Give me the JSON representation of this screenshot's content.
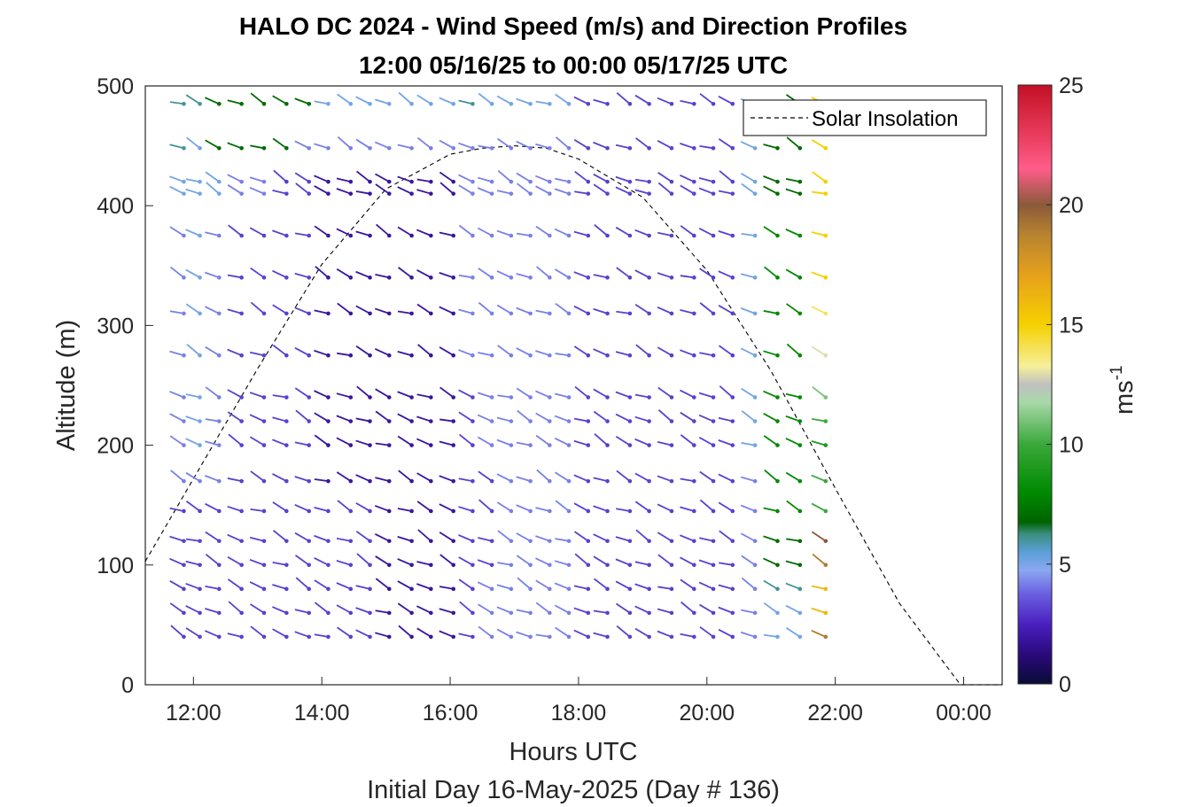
{
  "chart_data": {
    "type": "wind-barb-profile",
    "title": "HALO DC 2024 - Wind Speed (m/s) and Direction Profiles",
    "subtitle": "12:00 05/16/25 to 00:00 05/17/25  UTC",
    "xlabel": "Hours UTC",
    "xlabel2": "Initial Day 16-May-2025 (Day # 136)",
    "ylabel": "Altitude (m)",
    "xlim": [
      11.25,
      24.6
    ],
    "ylim": [
      0,
      500
    ],
    "x_tick_values": [
      12,
      14,
      16,
      18,
      20,
      22,
      24
    ],
    "x_tick_labels": [
      "12:00",
      "14:00",
      "16:00",
      "18:00",
      "20:00",
      "22:00",
      "00:00"
    ],
    "y_ticks": [
      0,
      100,
      200,
      300,
      400,
      500
    ],
    "colorbar": {
      "label": "ms",
      "label_exponent": "-1",
      "range": [
        0,
        25
      ],
      "ticks": [
        0,
        5,
        10,
        15,
        20,
        25
      ]
    },
    "legend": {
      "entry": "Solar Insolation",
      "placement": "top-right"
    },
    "grid": false,
    "series": {
      "solar_insolation": {
        "x": [
          11.25,
          12.0,
          13.0,
          14.0,
          15.0,
          16.0,
          16.5,
          17.0,
          17.5,
          18.0,
          19.0,
          20.0,
          21.0,
          22.0,
          23.0,
          23.95,
          24.6
        ],
        "y": [
          103,
          172,
          264,
          351,
          414,
          443,
          448,
          450,
          448,
          439,
          407,
          346,
          262,
          164,
          68,
          0,
          0
        ]
      },
      "wind_profiles": {
        "times": [
          11.85,
          12.1,
          12.4,
          12.75,
          13.1,
          13.45,
          13.8,
          14.1,
          14.45,
          14.75,
          15.05,
          15.4,
          15.7,
          16.05,
          16.35,
          16.65,
          16.95,
          17.25,
          17.55,
          17.85,
          18.15,
          18.45,
          18.8,
          19.1,
          19.45,
          19.8,
          20.1,
          20.4,
          20.75,
          21.1,
          21.45,
          21.85
        ],
        "altitudes": [
          40,
          60,
          80,
          100,
          120,
          145,
          170,
          200,
          220,
          240,
          275,
          310,
          340,
          375,
          410,
          420,
          448,
          485
        ],
        "speed_ms": [
          [
            3,
            3,
            3,
            3,
            3,
            3,
            3,
            3,
            3,
            3,
            2,
            2,
            2,
            2,
            3,
            4,
            4,
            4,
            4,
            4,
            3,
            3,
            3,
            3,
            3,
            3,
            3,
            3,
            4,
            5,
            5,
            19
          ],
          [
            3,
            3,
            3,
            3,
            3,
            3,
            3,
            3,
            3,
            3,
            2,
            2,
            2,
            2,
            3,
            4,
            4,
            4,
            4,
            4,
            3,
            3,
            3,
            3,
            3,
            3,
            3,
            3,
            4,
            5,
            5,
            16
          ],
          [
            3,
            3,
            3,
            3,
            3,
            3,
            3,
            3,
            3,
            3,
            2,
            2,
            2,
            2,
            3,
            4,
            4,
            4,
            4,
            4,
            3,
            3,
            3,
            3,
            3,
            3,
            3,
            3,
            4,
            6,
            6,
            16
          ],
          [
            3,
            3,
            3,
            3,
            3,
            3,
            3,
            3,
            3,
            3,
            2,
            2,
            2,
            2,
            3,
            3,
            4,
            4,
            4,
            4,
            3,
            3,
            3,
            3,
            3,
            3,
            3,
            3,
            4,
            7,
            7,
            19
          ],
          [
            3,
            3,
            3,
            3,
            3,
            3,
            3,
            3,
            3,
            3,
            2,
            2,
            2,
            2,
            3,
            3,
            4,
            4,
            4,
            4,
            3,
            3,
            3,
            3,
            3,
            3,
            3,
            3,
            4,
            7,
            7,
            20
          ],
          [
            3,
            3,
            3,
            3,
            3,
            3,
            3,
            3,
            3,
            3,
            2,
            2,
            2,
            2,
            3,
            3,
            4,
            4,
            4,
            4,
            3,
            3,
            3,
            3,
            3,
            3,
            3,
            3,
            4,
            8,
            8,
            10
          ],
          [
            4,
            4,
            4,
            3,
            3,
            3,
            3,
            2,
            2,
            2,
            2,
            2,
            2,
            2,
            3,
            3,
            4,
            4,
            4,
            4,
            3,
            3,
            3,
            3,
            3,
            3,
            3,
            3,
            4,
            8,
            8,
            10
          ],
          [
            4,
            5,
            4,
            3,
            3,
            3,
            3,
            2,
            2,
            2,
            2,
            2,
            2,
            2,
            3,
            4,
            4,
            4,
            4,
            4,
            3,
            3,
            3,
            3,
            3,
            3,
            3,
            3,
            5,
            8,
            8,
            9
          ],
          [
            4,
            5,
            4,
            3,
            3,
            3,
            3,
            2,
            2,
            2,
            2,
            2,
            2,
            2,
            3,
            4,
            4,
            4,
            4,
            4,
            3,
            3,
            3,
            3,
            3,
            3,
            3,
            3,
            5,
            8,
            8,
            10
          ],
          [
            4,
            5,
            4,
            3,
            3,
            3,
            3,
            2,
            2,
            2,
            2,
            2,
            2,
            2,
            3,
            4,
            4,
            4,
            4,
            4,
            3,
            3,
            3,
            3,
            3,
            3,
            3,
            3,
            5,
            8,
            8,
            11
          ],
          [
            4,
            5,
            4,
            3,
            3,
            3,
            3,
            2,
            2,
            2,
            2,
            2,
            2,
            2,
            4,
            4,
            4,
            4,
            4,
            4,
            3,
            3,
            3,
            3,
            3,
            3,
            3,
            3,
            5,
            8,
            8,
            13
          ],
          [
            4,
            5,
            4,
            3,
            3,
            3,
            3,
            2,
            2,
            2,
            2,
            2,
            2,
            2,
            4,
            4,
            4,
            4,
            4,
            4,
            3,
            3,
            3,
            3,
            3,
            3,
            3,
            3,
            5,
            8,
            8,
            14
          ],
          [
            4,
            5,
            4,
            3,
            3,
            3,
            3,
            2,
            2,
            2,
            2,
            2,
            2,
            2,
            4,
            4,
            4,
            4,
            4,
            4,
            3,
            3,
            3,
            3,
            3,
            3,
            3,
            3,
            5,
            8,
            8,
            15
          ],
          [
            4,
            5,
            4,
            3,
            3,
            3,
            3,
            2,
            2,
            2,
            2,
            2,
            2,
            2,
            4,
            4,
            4,
            4,
            4,
            4,
            3,
            3,
            3,
            3,
            3,
            3,
            3,
            3,
            5,
            8,
            8,
            15
          ],
          [
            5,
            5,
            5,
            4,
            4,
            3,
            3,
            2,
            2,
            2,
            2,
            2,
            2,
            2,
            4,
            4,
            4,
            4,
            4,
            4,
            3,
            3,
            3,
            3,
            3,
            3,
            3,
            3,
            5,
            7,
            7,
            15
          ],
          [
            5,
            5,
            5,
            4,
            4,
            3,
            3,
            2,
            2,
            2,
            2,
            2,
            2,
            2,
            4,
            4,
            4,
            4,
            4,
            4,
            3,
            3,
            3,
            3,
            3,
            3,
            3,
            3,
            5,
            7,
            7,
            15
          ],
          [
            6,
            5,
            7,
            7,
            7,
            7,
            4,
            4,
            4,
            4,
            4,
            4,
            4,
            4,
            4,
            4,
            4,
            4,
            4,
            4,
            3,
            3,
            3,
            3,
            3,
            3,
            3,
            3,
            5,
            7,
            7,
            15
          ],
          [
            6,
            6,
            7,
            7,
            7,
            7,
            7,
            5,
            5,
            5,
            5,
            5,
            5,
            5,
            6,
            5,
            5,
            5,
            5,
            5,
            3,
            3,
            3,
            3,
            3,
            3,
            3,
            3,
            5,
            7,
            7,
            15
          ]
        ]
      }
    }
  }
}
